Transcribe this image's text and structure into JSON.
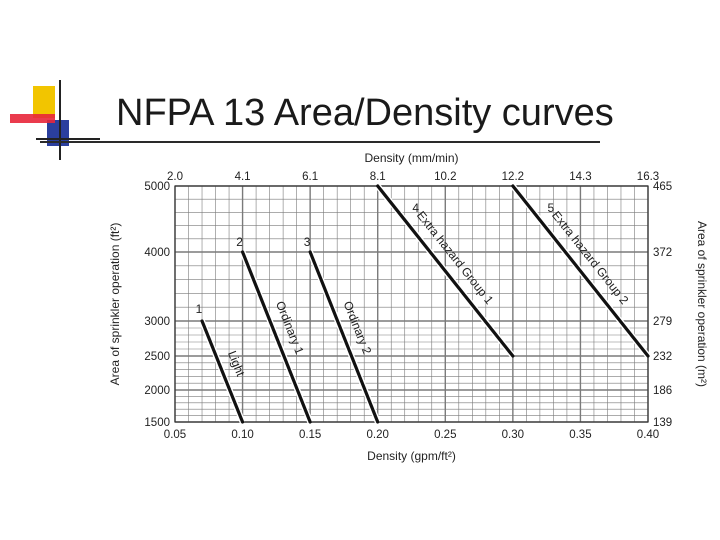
{
  "slide": {
    "title": "NFPA 13 Area/Density curves"
  },
  "colors": {
    "logo_yellow": "#f2c500",
    "logo_red": "#e8263a",
    "logo_blue": "#2b3f9e",
    "grid": "#7a7a7a",
    "curve": "#111111"
  },
  "chart_data": {
    "type": "line",
    "title": "",
    "xlabel": "Density (gpm/ft²)",
    "ylabel": "Area of sprinkler operation (ft²)",
    "top_xlabel": "Density (mm/min)",
    "right_ylabel": "Area of sprinkler operation (m²)",
    "xlim": [
      0.05,
      0.4
    ],
    "ylim": [
      1500,
      5000
    ],
    "x_ticks": [
      0.05,
      0.1,
      0.15,
      0.2,
      0.25,
      0.3,
      0.35,
      0.4
    ],
    "x_tick_labels": [
      "0.05",
      "0.10",
      "0.15",
      "0.20",
      "0.25",
      "0.30",
      "0.35",
      "0.40"
    ],
    "top_tick_labels": [
      "2.0",
      "4.1",
      "6.1",
      "8.1",
      "10.2",
      "12.2",
      "14.3",
      "16.3"
    ],
    "y_ticks": [
      1500,
      2000,
      2500,
      3000,
      4000,
      5000
    ],
    "y_tick_labels": [
      "1500",
      "2000",
      "2500",
      "3000",
      "4000",
      "5000"
    ],
    "right_tick_labels": [
      "139",
      "186",
      "232",
      "279",
      "372",
      "465"
    ],
    "grid": true,
    "series": [
      {
        "name": "Light",
        "number": "1",
        "x": [
          0.07,
          0.1
        ],
        "y": [
          3000,
          1500
        ]
      },
      {
        "name": "Ordinary 1",
        "number": "2",
        "x": [
          0.1,
          0.15
        ],
        "y": [
          4000,
          1500
        ]
      },
      {
        "name": "Ordinary 2",
        "number": "3",
        "x": [
          0.15,
          0.2
        ],
        "y": [
          4000,
          1500
        ]
      },
      {
        "name": "Extra hazard Group 1",
        "number": "4",
        "x": [
          0.2,
          0.3
        ],
        "y": [
          5000,
          2500
        ]
      },
      {
        "name": "Extra hazard Group 2",
        "number": "5",
        "x": [
          0.3,
          0.4
        ],
        "y": [
          5000,
          2500
        ]
      }
    ]
  }
}
